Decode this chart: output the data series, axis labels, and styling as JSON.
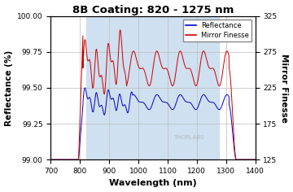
{
  "title": "8B Coating: 820 - 1275 nm",
  "xlabel": "Wavelength (nm)",
  "ylabel_left": "Reflectance (%)",
  "ylabel_right": "Mirror Finesse",
  "xlim": [
    700,
    1400
  ],
  "ylim_left": [
    99.0,
    100.0
  ],
  "ylim_right": [
    125,
    325
  ],
  "xticks": [
    700,
    800,
    900,
    1000,
    1100,
    1200,
    1300,
    1400
  ],
  "yticks_left": [
    99.0,
    99.25,
    99.5,
    99.75,
    100.0
  ],
  "yticks_right": [
    125,
    175,
    225,
    275,
    325
  ],
  "shaded_region": [
    820,
    1275
  ],
  "shaded_color": "#cfe0f0",
  "line_reflectance_color": "#0000cc",
  "line_finesse_color": "#cc0000",
  "watermark": "THORLABS",
  "legend_labels": [
    "Reflectance",
    "Mirror Finesse"
  ],
  "background_color": "#ffffff",
  "grid_color": "#bbbbbb"
}
